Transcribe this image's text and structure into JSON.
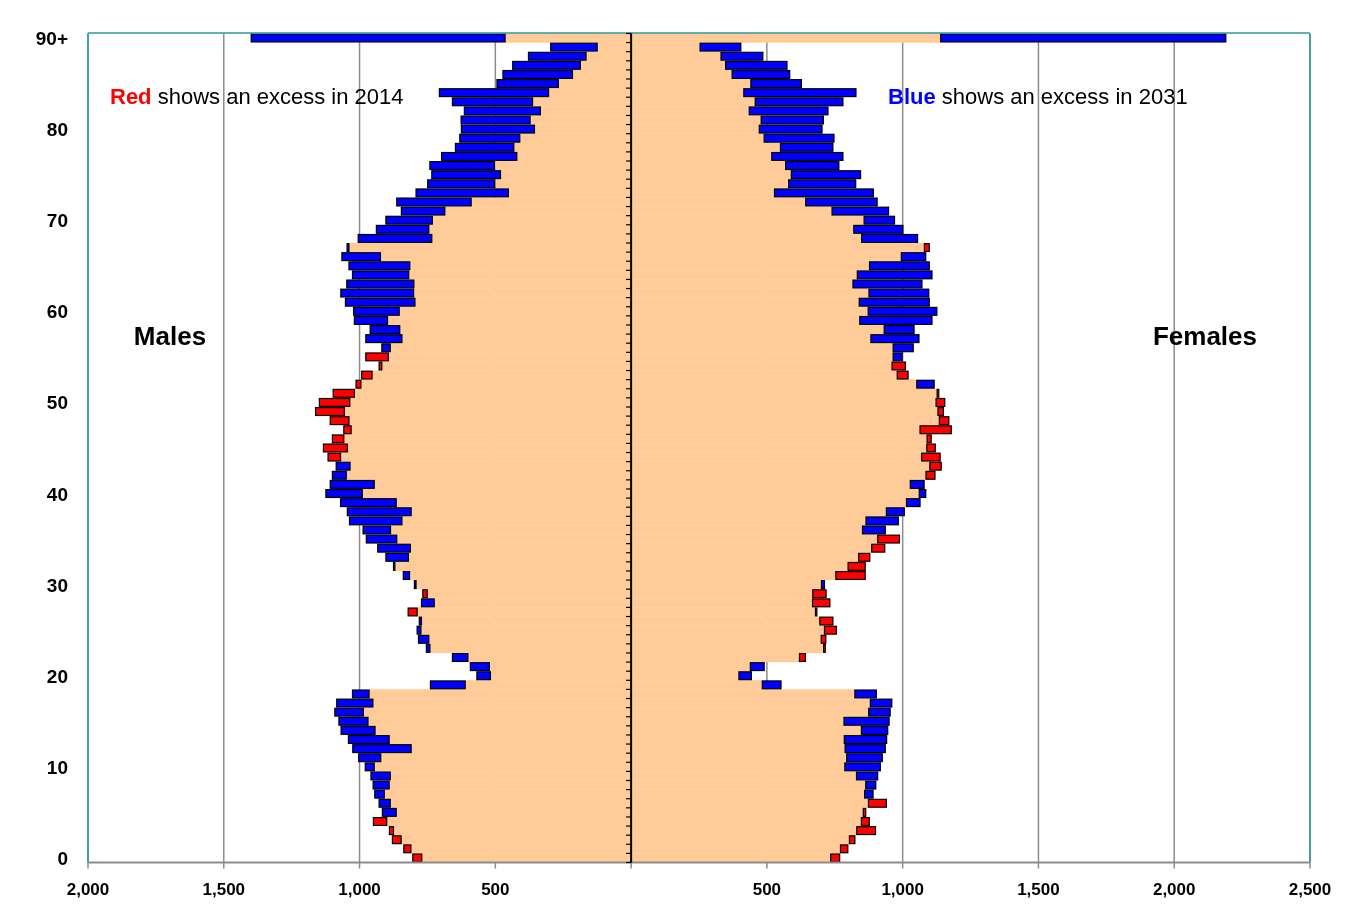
{
  "chart_data": {
    "type": "bar",
    "orientation": "horizontal",
    "stacked": true,
    "grid": "x",
    "categories": [
      "90+",
      null,
      null,
      null,
      null,
      null,
      null,
      null,
      null,
      null,
      "80",
      null,
      null,
      null,
      null,
      null,
      null,
      null,
      null,
      null,
      "70",
      null,
      null,
      null,
      null,
      null,
      null,
      null,
      null,
      null,
      "60",
      null,
      null,
      null,
      null,
      null,
      null,
      null,
      null,
      null,
      "50",
      null,
      null,
      null,
      null,
      null,
      null,
      null,
      null,
      null,
      "40",
      null,
      null,
      null,
      null,
      null,
      null,
      null,
      null,
      null,
      "30",
      null,
      null,
      null,
      null,
      null,
      null,
      null,
      null,
      null,
      "20",
      null,
      null,
      null,
      null,
      null,
      null,
      null,
      null,
      null,
      "10",
      null,
      null,
      null,
      null,
      null,
      null,
      null,
      null,
      null,
      "0"
    ],
    "xlim": [
      -2000,
      2500
    ],
    "xticks": [
      {
        "value": -2000,
        "label": "2,000"
      },
      {
        "value": -1500,
        "label": "1,500"
      },
      {
        "value": -1000,
        "label": "1,000"
      },
      {
        "value": -500,
        "label": "500"
      },
      {
        "value": 0,
        "label": null
      },
      500,
      {
        "value": 1000,
        "label": "1,000"
      },
      {
        "value": 1500,
        "label": "1,500"
      },
      {
        "value": 2000,
        "label": "2,000"
      },
      {
        "value": 2500,
        "label": "2,500"
      }
    ],
    "annotations": [
      "Red shows an excess in 2014",
      "Blue shows an excess in 2031",
      "Males",
      "Females"
    ],
    "series": [
      {
        "color": "#ffcc99",
        "values": [
          -464,
          -125,
          -166,
          -187,
          -216,
          -268,
          -304,
          -363,
          -334,
          -372,
          -356,
          -410,
          -432,
          -421,
          -503,
          -481,
          -502,
          -452,
          -589,
          -686,
          -732,
          -745,
          -734,
          -1039,
          -923,
          -815,
          -819,
          -800,
          -801,
          -796,
          -854,
          -897,
          -852,
          -844,
          -887,
          -894,
          -918,
          -954,
          -995,
          -1019,
          -1036,
          -1056,
          -1039,
          -1031,
          -1058,
          -1045,
          -1070,
          -1035,
          -1049,
          -946,
          -990,
          -865,
          -810,
          -844,
          -886,
          -863,
          -813,
          -820,
          -870,
          -816,
          -792,
          -751,
          -725,
          -788,
          -772,
          -774,
          -745,
          -741,
          -601,
          -522,
          -518,
          -611,
          -965,
          -951,
          -986,
          -969,
          -943,
          -891,
          -810,
          -922,
          -946,
          -887,
          -891,
          -909,
          -887,
          -865,
          -900,
          -875,
          -847,
          -811,
          -771
        ]
      },
      {
        "values": [
          -935,
          -171,
          -212,
          -249,
          -256,
          -226,
          -402,
          -295,
          -280,
          -254,
          -269,
          -221,
          -215,
          -277,
          -238,
          -253,
          -247,
          -340,
          -274,
          -160,
          -171,
          -193,
          -271,
          -7,
          -142,
          -224,
          -207,
          -247,
          -268,
          -256,
          -168,
          -122,
          -109,
          -133,
          -31,
          -83,
          -10,
          -38,
          -18,
          -78,
          -112,
          -106,
          -69,
          -27,
          -42,
          -88,
          -46,
          -51,
          -51,
          -162,
          -134,
          -205,
          -235,
          -193,
          -101,
          -112,
          -120,
          -83,
          -5,
          -23,
          -6,
          -16,
          -47,
          -33,
          -8,
          -14,
          -38,
          -13,
          -57,
          -70,
          -50,
          -128,
          -61,
          -133,
          -105,
          -107,
          -125,
          -150,
          -215,
          -81,
          -33,
          -71,
          -59,
          -35,
          -41,
          -51,
          -49,
          -15,
          -32,
          -26,
          -33
        ],
        "colors": [
          "#0000ff",
          "#0000ff",
          "#0000ff",
          "#0000ff",
          "#0000ff",
          "#0000ff",
          "#0000ff",
          "#0000ff",
          "#0000ff",
          "#0000ff",
          "#0000ff",
          "#0000ff",
          "#0000ff",
          "#0000ff",
          "#0000ff",
          "#0000ff",
          "#0000ff",
          "#0000ff",
          "#0000ff",
          "#0000ff",
          "#0000ff",
          "#0000ff",
          "#0000ff",
          "#0000ff",
          "#0000ff",
          "#0000ff",
          "#0000ff",
          "#0000ff",
          "#0000ff",
          "#0000ff",
          "#0000ff",
          "#0000ff",
          "#0000ff",
          "#0000ff",
          "#0000ff",
          "#ff0000",
          "#ff0000",
          "#ff0000",
          "#ff0000",
          "#ff0000",
          "#ff0000",
          "#ff0000",
          "#ff0000",
          "#ff0000",
          "#ff0000",
          "#ff0000",
          "#ff0000",
          "#0000ff",
          "#0000ff",
          "#0000ff",
          "#0000ff",
          "#0000ff",
          "#0000ff",
          "#0000ff",
          "#0000ff",
          "#0000ff",
          "#0000ff",
          "#0000ff",
          "#0000ff",
          "#0000ff",
          "#0000ff",
          "#ff0000",
          "#0000ff",
          "#ff0000",
          "#0000ff",
          "#0000ff",
          "#0000ff",
          "#0000ff",
          "#0000ff",
          "#0000ff",
          "#0000ff",
          "#0000ff",
          "#0000ff",
          "#0000ff",
          "#0000ff",
          "#0000ff",
          "#0000ff",
          "#0000ff",
          "#0000ff",
          "#0000ff",
          "#0000ff",
          "#0000ff",
          "#0000ff",
          "#0000ff",
          "#0000ff",
          "#0000ff",
          "#ff0000",
          "#ff0000",
          "#ff0000",
          "#ff0000",
          "#ff0000"
        ]
      },
      {
        "color": "#ffcc99",
        "values": [
          1140,
          254,
          331,
          348,
          372,
          441,
          415,
          457,
          435,
          479,
          472,
          490,
          550,
          518,
          569,
          590,
          580,
          528,
          643,
          740,
          858,
          820,
          849,
          1080,
          995,
          878,
          833,
          817,
          876,
          840,
          873,
          842,
          932,
          883,
          965,
          965,
          961,
          980,
          1052,
          1127,
          1123,
          1130,
          1135,
          1064,
          1090,
          1089,
          1070,
          1100,
          1086,
          1028,
          1061,
          1014,
          940,
          865,
          852,
          908,
          886,
          838,
          799,
          754,
          701,
          669,
          668,
          679,
          695,
          712,
          700,
          709,
          620,
          439,
          397,
          483,
          824,
          881,
          875,
          784,
          848,
          785,
          788,
          794,
          787,
          830,
          864,
          860,
          874,
          855,
          848,
          831,
          804,
          771,
          735
        ]
      },
      {
        "values": [
          1050,
          150,
          154,
          226,
          212,
          186,
          413,
          323,
          290,
          229,
          231,
          257,
          193,
          262,
          196,
          255,
          247,
          364,
          263,
          208,
          112,
          181,
          206,
          18,
          90,
          220,
          275,
          254,
          220,
          258,
          253,
          266,
          110,
          177,
          74,
          33,
          49,
          40,
          64,
          6,
          32,
          20,
          35,
          115,
          15,
          31,
          68,
          42,
          33,
          51,
          24,
          50,
          66,
          119,
          84,
          80,
          48,
          41,
          63,
          108,
          11,
          49,
          64,
          5,
          48,
          44,
          17,
          6,
          22,
          51,
          46,
          69,
          79,
          79,
          79,
          166,
          97,
          156,
          148,
          131,
          131,
          78,
          37,
          31,
          66,
          9,
          29,
          69,
          20,
          27,
          33
        ],
        "colors": [
          "#0000ff",
          "#0000ff",
          "#0000ff",
          "#0000ff",
          "#0000ff",
          "#0000ff",
          "#0000ff",
          "#0000ff",
          "#0000ff",
          "#0000ff",
          "#0000ff",
          "#0000ff",
          "#0000ff",
          "#0000ff",
          "#0000ff",
          "#0000ff",
          "#0000ff",
          "#0000ff",
          "#0000ff",
          "#0000ff",
          "#0000ff",
          "#0000ff",
          "#0000ff",
          "#ff0000",
          "#0000ff",
          "#0000ff",
          "#0000ff",
          "#0000ff",
          "#0000ff",
          "#0000ff",
          "#0000ff",
          "#0000ff",
          "#0000ff",
          "#0000ff",
          "#0000ff",
          "#0000ff",
          "#ff0000",
          "#ff0000",
          "#0000ff",
          "#ff0000",
          "#ff0000",
          "#ff0000",
          "#ff0000",
          "#ff0000",
          "#ff0000",
          "#ff0000",
          "#ff0000",
          "#ff0000",
          "#ff0000",
          "#0000ff",
          "#0000ff",
          "#0000ff",
          "#0000ff",
          "#0000ff",
          "#0000ff",
          "#ff0000",
          "#ff0000",
          "#ff0000",
          "#ff0000",
          "#ff0000",
          "#0000ff",
          "#ff0000",
          "#ff0000",
          "#ff0000",
          "#ff0000",
          "#ff0000",
          "#ff0000",
          "#ff0000",
          "#ff0000",
          "#0000ff",
          "#0000ff",
          "#0000ff",
          "#0000ff",
          "#0000ff",
          "#0000ff",
          "#0000ff",
          "#0000ff",
          "#0000ff",
          "#0000ff",
          "#0000ff",
          "#0000ff",
          "#0000ff",
          "#0000ff",
          "#0000ff",
          "#ff0000",
          "#ff0000",
          "#ff0000",
          "#ff0000",
          "#ff0000",
          "#ff0000",
          "#ff0000"
        ]
      }
    ]
  }
}
